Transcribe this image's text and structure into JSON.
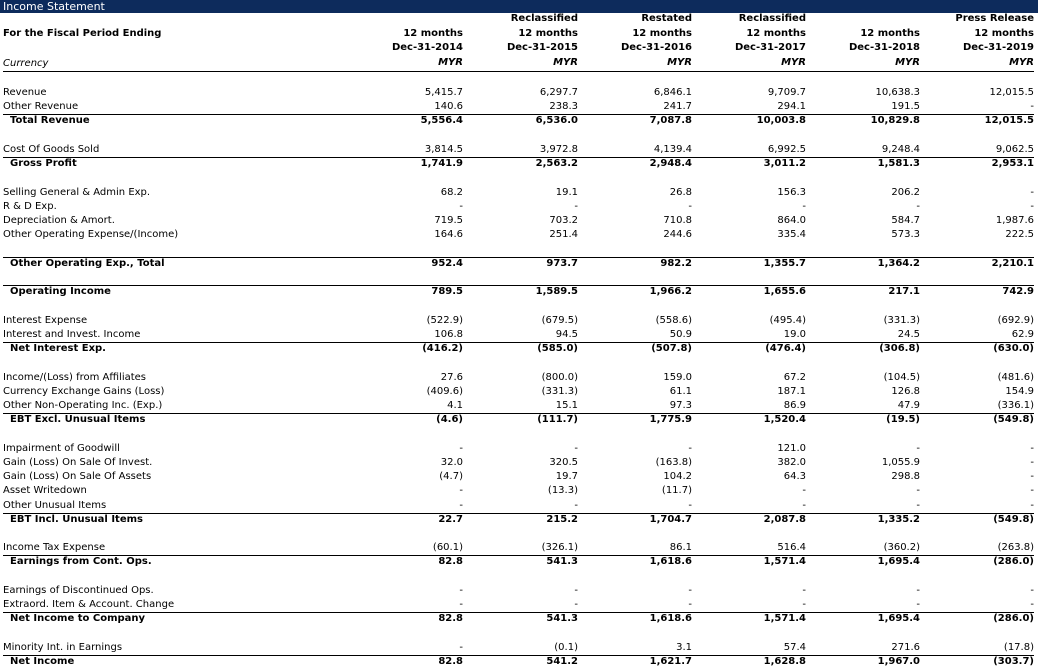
{
  "title": "Income Statement",
  "header": {
    "label": "For the Fiscal Period Ending",
    "currency_label": "Currency",
    "columns": [
      {
        "period": "12 months",
        "date": "Dec-31-2014",
        "currency": "MYR"
      },
      {
        "qualifier": "Reclassified",
        "period": "12 months",
        "date": "Dec-31-2015",
        "currency": "MYR"
      },
      {
        "qualifier": "Restated",
        "period": "12 months",
        "date": "Dec-31-2016",
        "currency": "MYR"
      },
      {
        "qualifier": "Reclassified",
        "period": "12 months",
        "date": "Dec-31-2017",
        "currency": "MYR"
      },
      {
        "period": "12 months",
        "date": "Dec-31-2018",
        "currency": "MYR"
      },
      {
        "qualifier": "Press Release",
        "period": "12 months",
        "date": "Dec-31-2019",
        "currency": "MYR"
      }
    ]
  },
  "groups": [
    {
      "rows": [
        {
          "label": "Revenue",
          "values": [
            "5,415.7",
            "6,297.7",
            "6,846.1",
            "9,709.7",
            "10,638.3",
            "12,015.5"
          ]
        },
        {
          "label": "Other Revenue",
          "values": [
            "140.6",
            "238.3",
            "241.7",
            "294.1",
            "191.5",
            "-"
          ]
        },
        {
          "label": "Total Revenue",
          "bold": true,
          "values": [
            "5,556.4",
            "6,536.0",
            "7,087.8",
            "10,003.8",
            "10,829.8",
            "12,015.5"
          ]
        }
      ]
    },
    {
      "rows": [
        {
          "label": "Cost Of Goods Sold",
          "values": [
            "3,814.5",
            "3,972.8",
            "4,139.4",
            "6,992.5",
            "9,248.4",
            "9,062.5"
          ]
        },
        {
          "label": "Gross Profit",
          "bold": true,
          "values": [
            "1,741.9",
            "2,563.2",
            "2,948.4",
            "3,011.2",
            "1,581.3",
            "2,953.1"
          ]
        }
      ]
    },
    {
      "rows": [
        {
          "label": "Selling General & Admin Exp.",
          "values": [
            "68.2",
            "19.1",
            "26.8",
            "156.3",
            "206.2",
            "-"
          ]
        },
        {
          "label": "R & D Exp.",
          "values": [
            "-",
            "-",
            "-",
            "-",
            "-",
            "-"
          ]
        },
        {
          "label": "Depreciation & Amort.",
          "values": [
            "719.5",
            "703.2",
            "710.8",
            "864.0",
            "584.7",
            "1,987.6"
          ]
        },
        {
          "label": "Other Operating Expense/(Income)",
          "values": [
            "164.6",
            "251.4",
            "244.6",
            "335.4",
            "573.3",
            "222.5"
          ]
        }
      ]
    },
    {
      "rows": [
        {
          "label": "Other Operating Exp., Total",
          "bold": true,
          "values": [
            "952.4",
            "973.7",
            "982.2",
            "1,355.7",
            "1,364.2",
            "2,210.1"
          ]
        }
      ]
    },
    {
      "rows": [
        {
          "label": "Operating Income",
          "bold": true,
          "values": [
            "789.5",
            "1,589.5",
            "1,966.2",
            "1,655.6",
            "217.1",
            "742.9"
          ]
        }
      ]
    },
    {
      "rows": [
        {
          "label": "Interest Expense",
          "values": [
            "(522.9)",
            "(679.5)",
            "(558.6)",
            "(495.4)",
            "(331.3)",
            "(692.9)"
          ]
        },
        {
          "label": "Interest and Invest. Income",
          "values": [
            "106.8",
            "94.5",
            "50.9",
            "19.0",
            "24.5",
            "62.9"
          ]
        },
        {
          "label": "Net Interest Exp.",
          "bold": true,
          "values": [
            "(416.2)",
            "(585.0)",
            "(507.8)",
            "(476.4)",
            "(306.8)",
            "(630.0)"
          ]
        }
      ]
    },
    {
      "rows": [
        {
          "label": "Income/(Loss) from Affiliates",
          "values": [
            "27.6",
            "(800.0)",
            "159.0",
            "67.2",
            "(104.5)",
            "(481.6)"
          ]
        },
        {
          "label": "Currency Exchange Gains (Loss)",
          "values": [
            "(409.6)",
            "(331.3)",
            "61.1",
            "187.1",
            "126.8",
            "154.9"
          ]
        },
        {
          "label": "Other Non-Operating Inc. (Exp.)",
          "values": [
            "4.1",
            "15.1",
            "97.3",
            "86.9",
            "47.9",
            "(336.1)"
          ]
        },
        {
          "label": "EBT Excl. Unusual Items",
          "bold": true,
          "values": [
            "(4.6)",
            "(111.7)",
            "1,775.9",
            "1,520.4",
            "(19.5)",
            "(549.8)"
          ]
        }
      ]
    },
    {
      "rows": [
        {
          "label": "Impairment of Goodwill",
          "values": [
            "-",
            "-",
            "-",
            "121.0",
            "-",
            "-"
          ]
        },
        {
          "label": "Gain (Loss) On Sale Of Invest.",
          "values": [
            "32.0",
            "320.5",
            "(163.8)",
            "382.0",
            "1,055.9",
            "-"
          ]
        },
        {
          "label": "Gain (Loss) On Sale Of Assets",
          "values": [
            "(4.7)",
            "19.7",
            "104.2",
            "64.3",
            "298.8",
            "-"
          ]
        },
        {
          "label": "Asset Writedown",
          "values": [
            "-",
            "(13.3)",
            "(11.7)",
            "-",
            "-",
            "-"
          ]
        },
        {
          "label": "Other Unusual Items",
          "values": [
            "-",
            "-",
            "-",
            "-",
            "-",
            "-"
          ]
        },
        {
          "label": "EBT Incl. Unusual Items",
          "bold": true,
          "values": [
            "22.7",
            "215.2",
            "1,704.7",
            "2,087.8",
            "1,335.2",
            "(549.8)"
          ]
        }
      ]
    },
    {
      "rows": [
        {
          "label": "Income Tax Expense",
          "values": [
            "(60.1)",
            "(326.1)",
            "86.1",
            "516.4",
            "(360.2)",
            "(263.8)"
          ]
        },
        {
          "label": "Earnings from Cont. Ops.",
          "bold": true,
          "values": [
            "82.8",
            "541.3",
            "1,618.6",
            "1,571.4",
            "1,695.4",
            "(286.0)"
          ]
        }
      ]
    },
    {
      "rows": [
        {
          "label": "Earnings of Discontinued Ops.",
          "values": [
            "-",
            "-",
            "-",
            "-",
            "-",
            "-"
          ]
        },
        {
          "label": "Extraord. Item & Account. Change",
          "values": [
            "-",
            "-",
            "-",
            "-",
            "-",
            "-"
          ]
        },
        {
          "label": "Net Income to Company",
          "bold": true,
          "values": [
            "82.8",
            "541.3",
            "1,618.6",
            "1,571.4",
            "1,695.4",
            "(286.0)"
          ]
        }
      ]
    },
    {
      "rows": [
        {
          "label": "Minority Int. in Earnings",
          "values": [
            "-",
            "(0.1)",
            "3.1",
            "57.4",
            "271.6",
            "(17.8)"
          ]
        },
        {
          "label": "Net Income",
          "bold": true,
          "values": [
            "82.8",
            "541.2",
            "1,621.7",
            "1,628.8",
            "1,967.0",
            "(303.7)"
          ]
        }
      ]
    }
  ]
}
